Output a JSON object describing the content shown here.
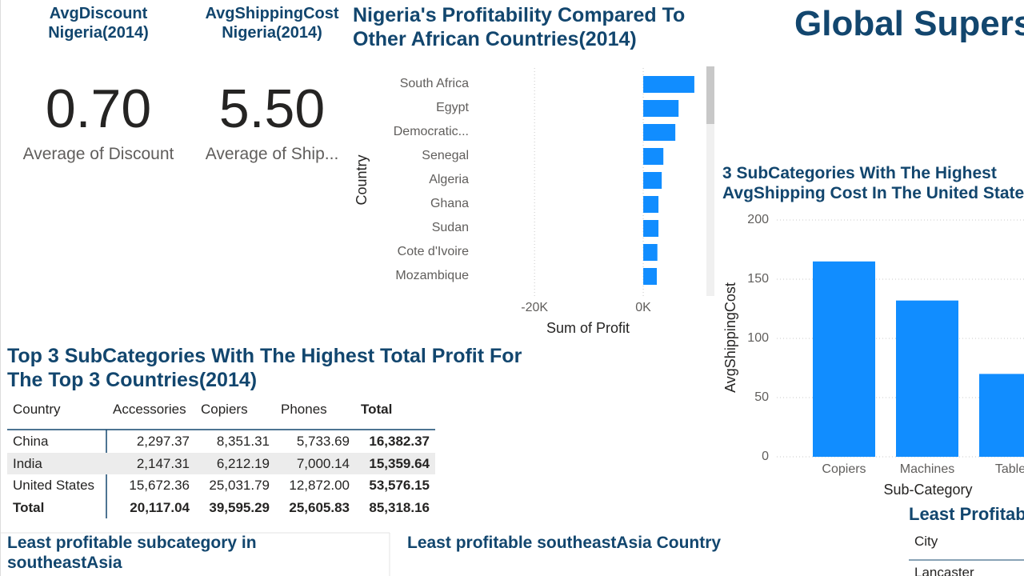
{
  "header": {
    "title": "Global Supers"
  },
  "cards": [
    {
      "title": "AvgDiscount Nigeria(2014)",
      "value": "0.70",
      "label": "Average of Discount"
    },
    {
      "title": "AvgShippingCost Nigeria(2014)",
      "value": "5.50",
      "label": "Average of Ship..."
    }
  ],
  "chart_data": [
    {
      "type": "hbar",
      "title": "Nigeria's Profitability Compared To Other African Countries(2014)",
      "categories": [
        "South Africa",
        "Egypt",
        "Democratic...",
        "Senegal",
        "Algeria",
        "Ghana",
        "Sudan",
        "Cote d'Ivoire",
        "Mozambique"
      ],
      "values": [
        9400,
        6500,
        5900,
        3700,
        3400,
        2800,
        2800,
        2600,
        2500
      ],
      "xlim": [
        -24000,
        10000
      ],
      "xticks": [
        {
          "value": -20000,
          "label": "-20K"
        },
        {
          "value": 0,
          "label": "0K"
        }
      ],
      "xlabel": "Sum of Profit",
      "ylabel": "Country",
      "color": "#118dff",
      "grid": true
    },
    {
      "type": "bar",
      "title": "3 SubCategories With The Highest AvgShipping Cost In The United State",
      "categories": [
        "Copiers",
        "Machines",
        "Table"
      ],
      "values": [
        165,
        132,
        70
      ],
      "ylim": [
        0,
        200
      ],
      "yticks": [
        0,
        50,
        100,
        150,
        200
      ],
      "xlabel": "Sub-Category",
      "ylabel": "AvgShippingCost",
      "color": "#118dff",
      "grid": true
    }
  ],
  "table": {
    "title": "Top 3 SubCategories With The Highest Total Profit For The Top 3 Countries(2014)",
    "columns": [
      "Country",
      "Accessories",
      "Copiers",
      "Phones",
      "Total"
    ],
    "rows": [
      [
        "China",
        "2,297.37",
        "8,351.31",
        "5,733.69",
        "16,382.37"
      ],
      [
        "India",
        "2,147.31",
        "6,212.19",
        "7,000.14",
        "15,359.64"
      ],
      [
        "United States",
        "15,672.36",
        "25,031.79",
        "12,872.00",
        "53,576.15"
      ],
      [
        "Total",
        "20,117.04",
        "39,595.29",
        "25,605.83",
        "85,318.16"
      ]
    ]
  },
  "sections": [
    {
      "title": "Least profitable subcategory in southeastAsia"
    },
    {
      "title": "Least profitable southeastAsia Country"
    },
    {
      "title": "Least Profitab"
    }
  ],
  "small_table": {
    "columns": [
      "City"
    ],
    "rows": [
      [
        "Lancaster"
      ]
    ]
  }
}
